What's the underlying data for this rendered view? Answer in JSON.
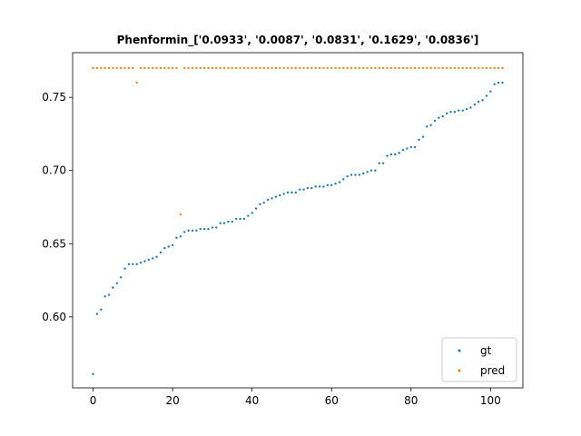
{
  "chart_data": {
    "type": "scatter",
    "title": "Phenformin_['0.0933', '0.0087', '0.0831', '0.1629', '0.0836']",
    "xlabel": "",
    "ylabel": "",
    "xlim": [
      -5.15,
      108.15
    ],
    "ylim": [
      0.5515,
      0.7805
    ],
    "xticks": [
      0,
      20,
      40,
      60,
      80,
      100
    ],
    "yticks": [
      0.6,
      0.65,
      0.7,
      0.75
    ],
    "ytick_labels": [
      "0.60",
      "0.65",
      "0.70",
      "0.75"
    ],
    "legend_position": "lower-right",
    "grid": false,
    "series": [
      {
        "name": "gt",
        "color": "#1f77b4",
        "values": [
          0.561,
          0.602,
          0.605,
          0.614,
          0.615,
          0.62,
          0.623,
          0.627,
          0.633,
          0.636,
          0.636,
          0.636,
          0.637,
          0.638,
          0.639,
          0.64,
          0.641,
          0.644,
          0.647,
          0.648,
          0.649,
          0.654,
          0.655,
          0.658,
          0.659,
          0.659,
          0.659,
          0.66,
          0.66,
          0.66,
          0.661,
          0.661,
          0.664,
          0.664,
          0.665,
          0.665,
          0.667,
          0.667,
          0.667,
          0.669,
          0.671,
          0.674,
          0.677,
          0.678,
          0.68,
          0.681,
          0.682,
          0.683,
          0.684,
          0.685,
          0.685,
          0.685,
          0.687,
          0.687,
          0.688,
          0.688,
          0.689,
          0.689,
          0.689,
          0.69,
          0.69,
          0.691,
          0.692,
          0.694,
          0.696,
          0.697,
          0.697,
          0.697,
          0.698,
          0.699,
          0.7,
          0.7,
          0.705,
          0.705,
          0.71,
          0.711,
          0.711,
          0.712,
          0.714,
          0.715,
          0.716,
          0.716,
          0.721,
          0.723,
          0.73,
          0.731,
          0.734,
          0.736,
          0.737,
          0.739,
          0.74,
          0.74,
          0.741,
          0.741,
          0.742,
          0.743,
          0.745,
          0.747,
          0.748,
          0.751,
          0.754,
          0.759,
          0.76,
          0.76
        ]
      },
      {
        "name": "pred",
        "color": "#ff7f0e",
        "values": [
          0.77,
          0.77,
          0.77,
          0.77,
          0.77,
          0.77,
          0.77,
          0.77,
          0.77,
          0.77,
          0.77,
          0.76,
          0.77,
          0.77,
          0.77,
          0.77,
          0.77,
          0.77,
          0.77,
          0.77,
          0.77,
          0.77,
          0.67,
          0.77,
          0.77,
          0.77,
          0.77,
          0.77,
          0.77,
          0.77,
          0.77,
          0.77,
          0.77,
          0.77,
          0.77,
          0.77,
          0.77,
          0.77,
          0.77,
          0.77,
          0.77,
          0.77,
          0.77,
          0.77,
          0.77,
          0.77,
          0.77,
          0.77,
          0.77,
          0.77,
          0.77,
          0.77,
          0.77,
          0.77,
          0.77,
          0.77,
          0.77,
          0.77,
          0.77,
          0.77,
          0.77,
          0.77,
          0.77,
          0.77,
          0.77,
          0.77,
          0.77,
          0.77,
          0.77,
          0.77,
          0.77,
          0.77,
          0.77,
          0.77,
          0.77,
          0.77,
          0.77,
          0.77,
          0.77,
          0.77,
          0.77,
          0.77,
          0.77,
          0.77,
          0.77,
          0.77,
          0.77,
          0.77,
          0.77,
          0.77,
          0.77,
          0.77,
          0.77,
          0.77,
          0.77,
          0.77,
          0.77,
          0.77,
          0.77,
          0.77,
          0.77,
          0.77,
          0.77,
          0.77
        ]
      }
    ]
  }
}
